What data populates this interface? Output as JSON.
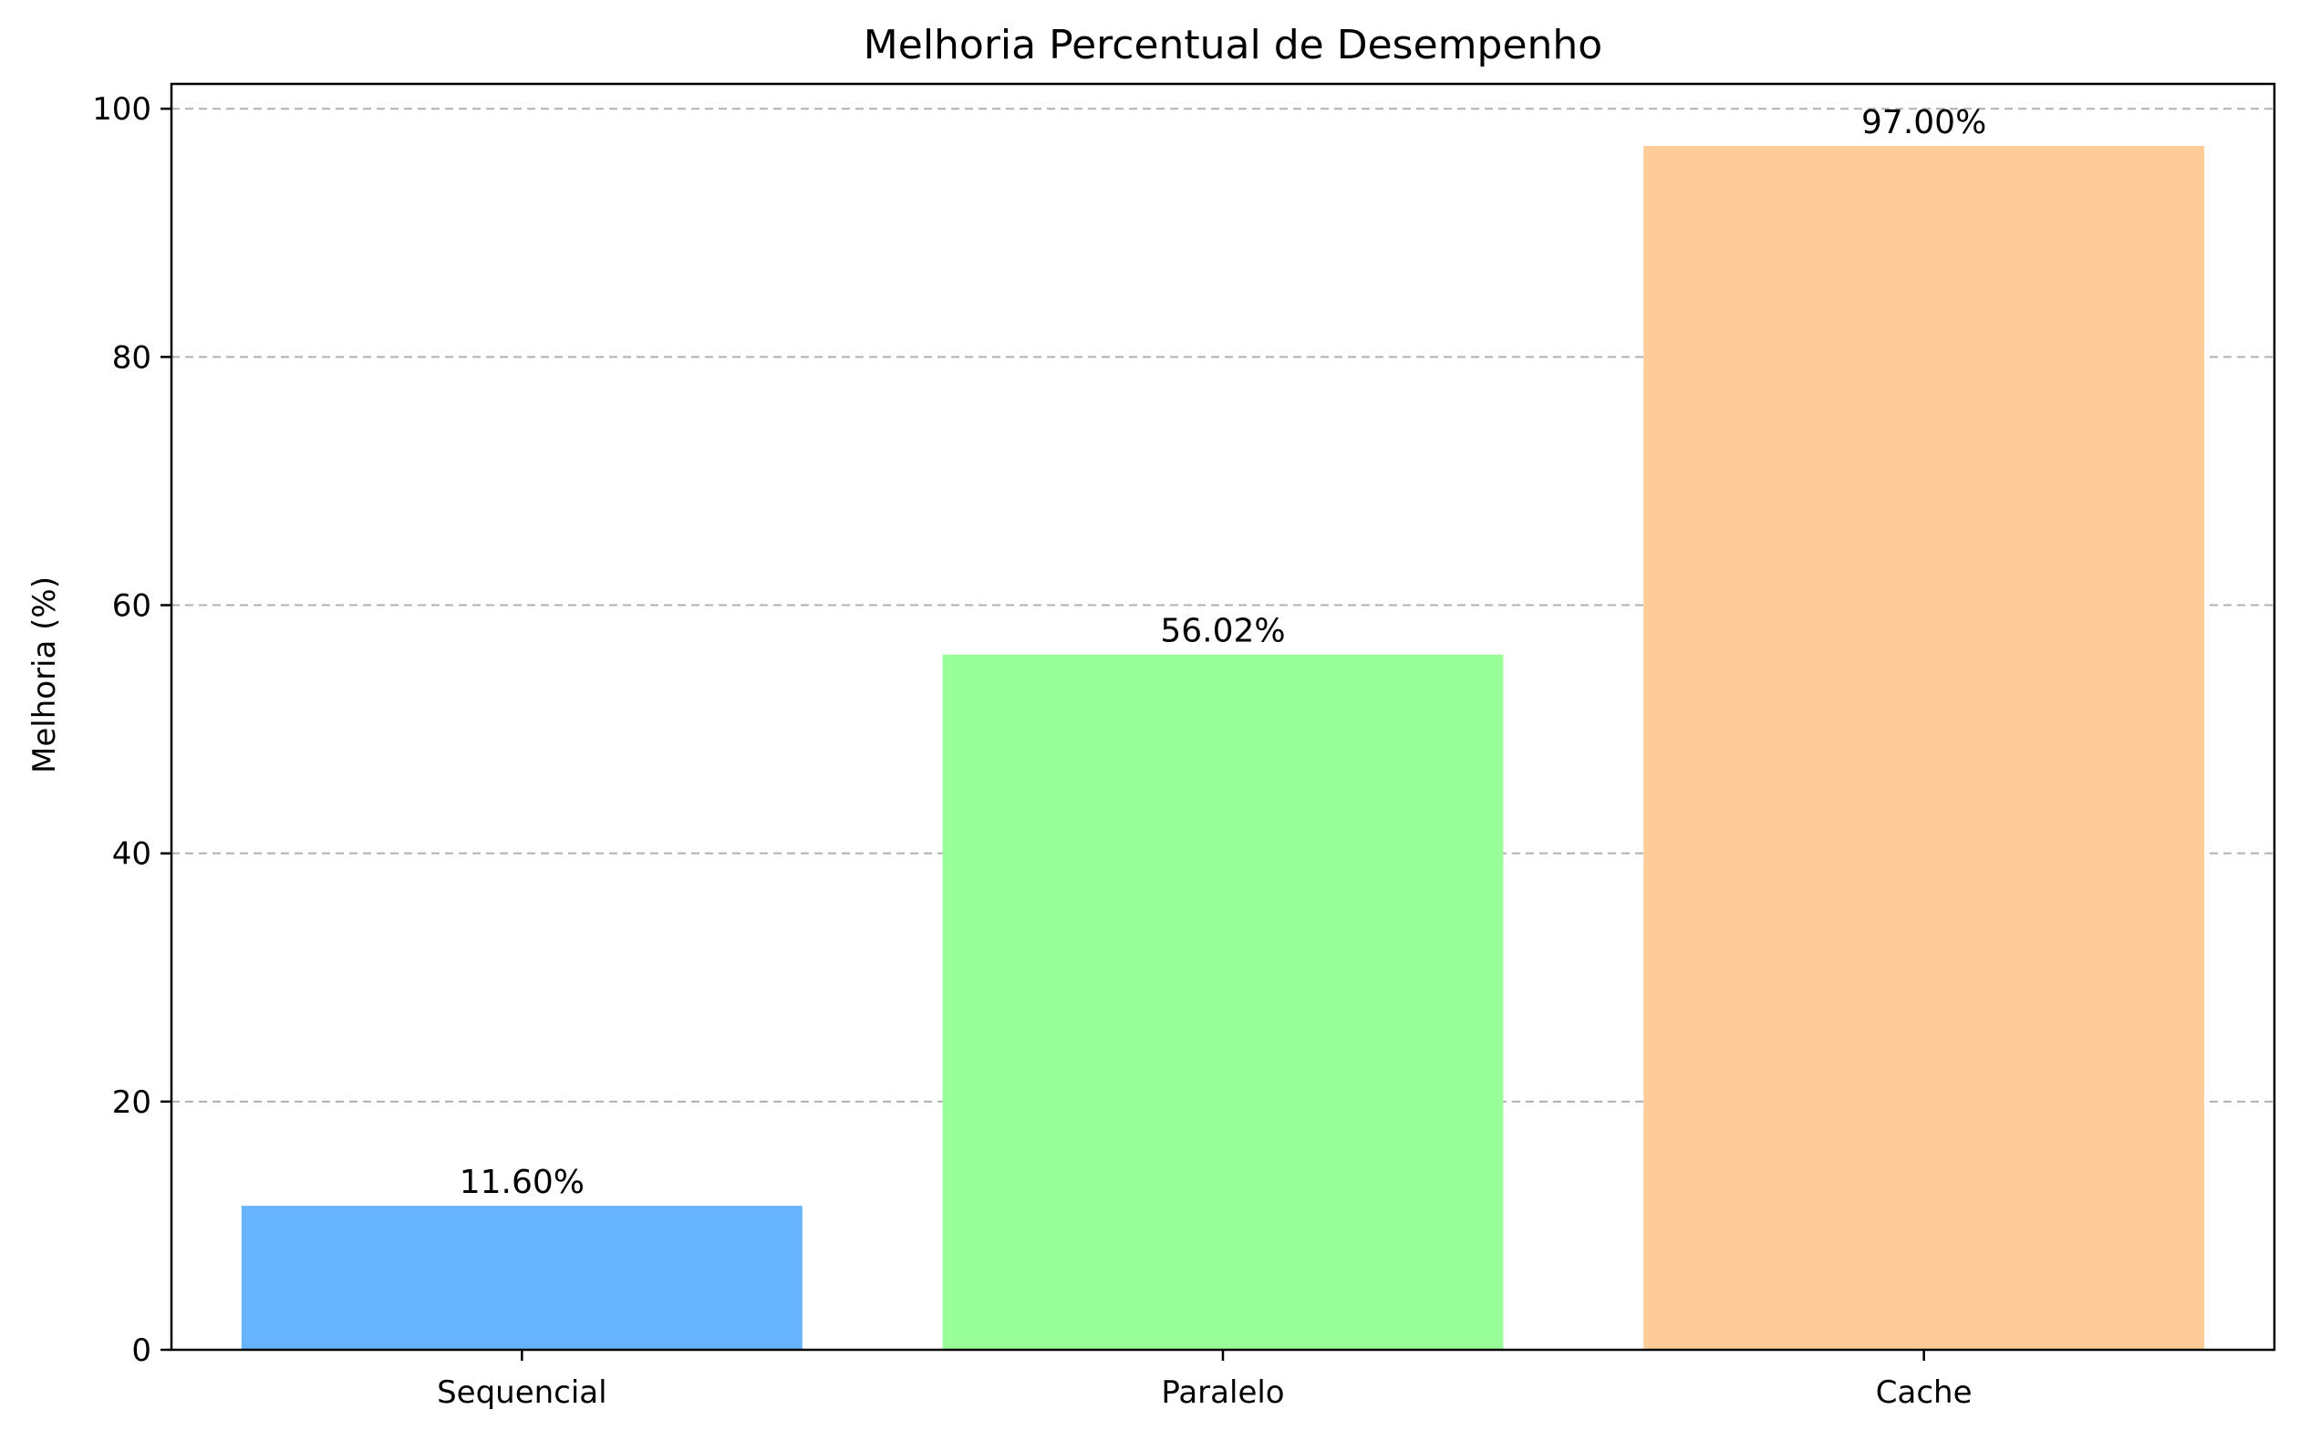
{
  "chart_data": {
    "type": "bar",
    "title": "Melhoria Percentual de Desempenho",
    "xlabel": "",
    "ylabel": "Melhoria (%)",
    "categories": [
      "Sequencial",
      "Paralelo",
      "Cache"
    ],
    "values": [
      11.6,
      56.02,
      97.0
    ],
    "value_labels": [
      "11.60%",
      "56.02%",
      "97.00%"
    ],
    "colors": [
      "#66b3ff",
      "#99ff99",
      "#ffcc99"
    ],
    "ylim": [
      0,
      102
    ],
    "yticks": [
      0,
      20,
      40,
      60,
      80,
      100
    ],
    "grid": "y-dashed",
    "legend": "none"
  }
}
